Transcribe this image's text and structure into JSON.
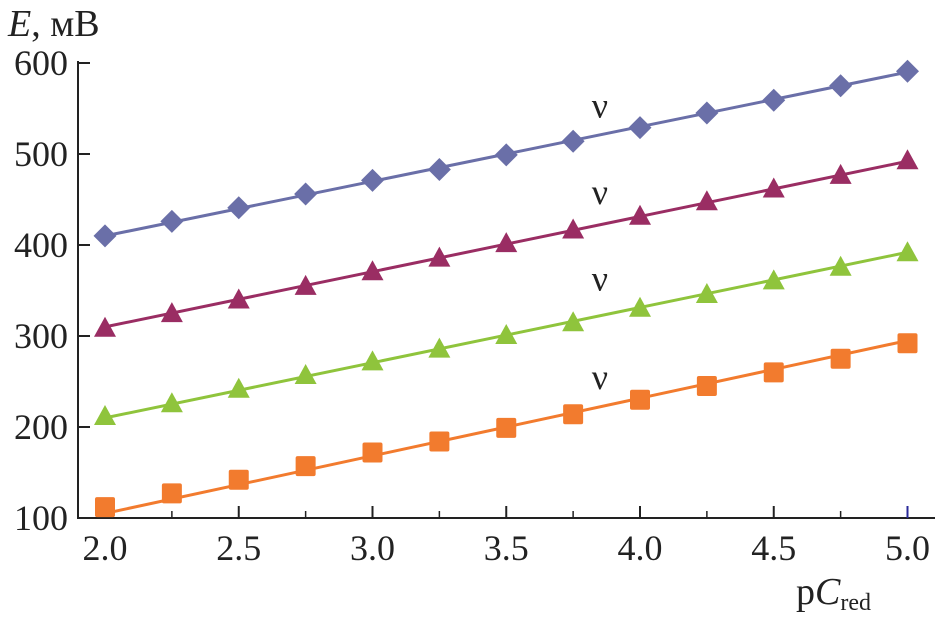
{
  "chart_data": {
    "type": "line",
    "title": "",
    "xlabel": {
      "prefix": "p",
      "main": "C",
      "sub": "red"
    },
    "ylabel": {
      "italic": "E",
      "rest": ", мВ"
    },
    "xlim": [
      1.95,
      5.1
    ],
    "ylim": [
      100,
      600
    ],
    "xticks": [
      "2.0",
      "2.5",
      "3.0",
      "3.5",
      "4.0",
      "4.5",
      "5.0"
    ],
    "yticks": [
      "100",
      "200",
      "300",
      "400",
      "500",
      "600"
    ],
    "grid": false,
    "x": [
      2.0,
      2.25,
      2.5,
      2.75,
      3.0,
      3.25,
      3.5,
      3.75,
      4.0,
      4.25,
      4.5,
      4.75,
      5.0
    ],
    "series": [
      {
        "marker": "diamond",
        "color": "#6a6fa8",
        "label": "ν",
        "label_at": [
          3.85,
          540
        ],
        "fit": [
          410,
          590
        ],
        "values": [
          410,
          426,
          441,
          456,
          471,
          483,
          499,
          514,
          529,
          545,
          559,
          575,
          591
        ]
      },
      {
        "marker": "triangle",
        "color": "#9a2d63",
        "label": "ν",
        "label_at": [
          3.85,
          445
        ],
        "fit": [
          310,
          492
        ],
        "values": [
          308,
          324,
          339,
          354,
          370,
          385,
          401,
          416,
          431,
          447,
          461,
          476,
          492
        ]
      },
      {
        "marker": "triangle",
        "color": "#8fc43c",
        "label": "ν",
        "label_at": [
          3.85,
          350
        ],
        "fit": [
          210,
          392
        ],
        "values": [
          211,
          225,
          241,
          256,
          271,
          285,
          300,
          314,
          330,
          345,
          360,
          375,
          391
        ]
      },
      {
        "marker": "square",
        "color": "#f27b2e",
        "label": "ν",
        "label_at": [
          3.85,
          242
        ],
        "fit": [
          105,
          295
        ],
        "values": [
          112,
          127,
          142,
          157,
          172,
          184,
          199,
          214,
          230,
          245,
          260,
          275,
          292
        ]
      }
    ]
  }
}
